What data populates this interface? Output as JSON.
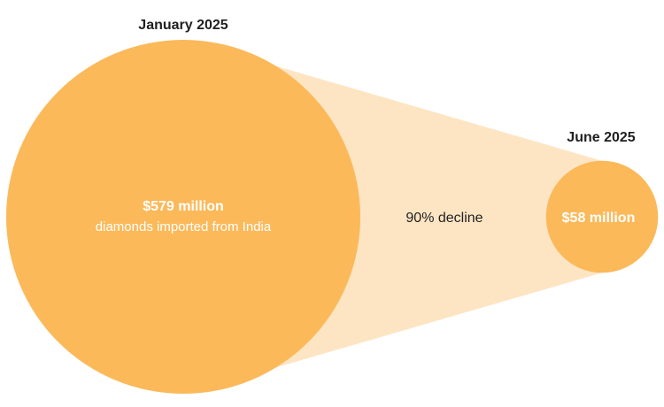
{
  "chart_data": {
    "type": "proportional-circles",
    "points": [
      {
        "period": "January 2025",
        "value": 579,
        "value_label": "$579 million",
        "description": "diamonds imported from India"
      },
      {
        "period": "June 2025",
        "value": 58,
        "value_label": "$58 million"
      }
    ],
    "change_label": "90% decline",
    "colors": {
      "circle": "#fbb95a",
      "connector": "#fde5c4",
      "period_text": "#1f1f1f",
      "value_text": "#ffffff"
    }
  }
}
